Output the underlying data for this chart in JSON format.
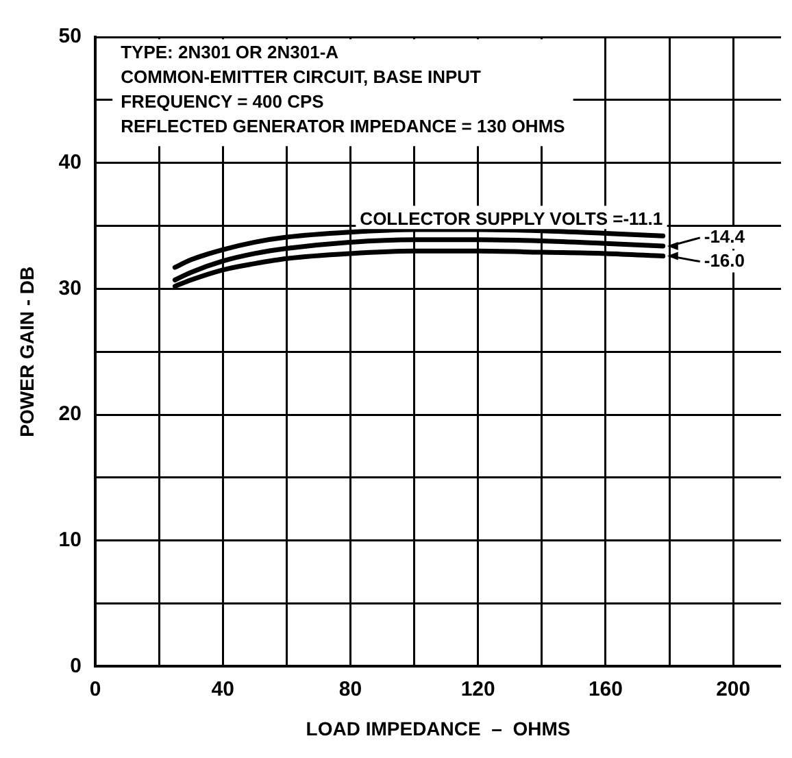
{
  "chart_data": {
    "type": "line",
    "xlabel": "LOAD IMPEDANCE  –  OHMS",
    "ylabel": "POWER GAIN - DB",
    "annotations": [
      "TYPE: 2N301 OR 2N301-A",
      "COMMON-EMITTER CIRCUIT, BASE INPUT",
      "FREQUENCY = 400 CPS",
      "REFLECTED GENERATOR IMPEDANCE = 130 OHMS"
    ],
    "x": [
      25,
      30,
      40,
      50,
      60,
      80,
      100,
      120,
      140,
      160,
      178
    ],
    "series": [
      {
        "name": "COLLECTOR SUPPLY VOLTS =-11.1",
        "color": "#000000",
        "values": [
          31.7,
          32.3,
          33.1,
          33.7,
          34.1,
          34.5,
          34.7,
          34.7,
          34.6,
          34.4,
          34.2
        ]
      },
      {
        "name": "-14.4",
        "color": "#000000",
        "values": [
          30.7,
          31.3,
          32.2,
          32.8,
          33.2,
          33.7,
          33.9,
          33.9,
          33.8,
          33.6,
          33.4
        ]
      },
      {
        "name": "-16.0",
        "color": "#000000",
        "values": [
          30.2,
          30.7,
          31.5,
          32.0,
          32.4,
          32.8,
          33.0,
          33.0,
          32.9,
          32.8,
          32.6
        ]
      }
    ],
    "xlim": [
      0,
      215
    ],
    "ylim": [
      0,
      50
    ],
    "xticks": [
      0,
      {
        "value": 20,
        "label": null
      },
      40,
      {
        "value": 60,
        "label": null
      },
      80,
      {
        "value": 100,
        "label": null
      },
      120,
      {
        "value": 140,
        "label": null
      },
      160,
      {
        "value": 180,
        "label": null
      },
      200
    ],
    "yticks": [
      0,
      {
        "value": 5,
        "label": null
      },
      10,
      {
        "value": 15,
        "label": null
      },
      20,
      {
        "value": 25,
        "label": null
      },
      30,
      {
        "value": 35,
        "label": null
      },
      40,
      {
        "value": 45,
        "label": null
      },
      50
    ],
    "grid": true,
    "legend": "right",
    "marker": "none",
    "line_style": "solid"
  }
}
